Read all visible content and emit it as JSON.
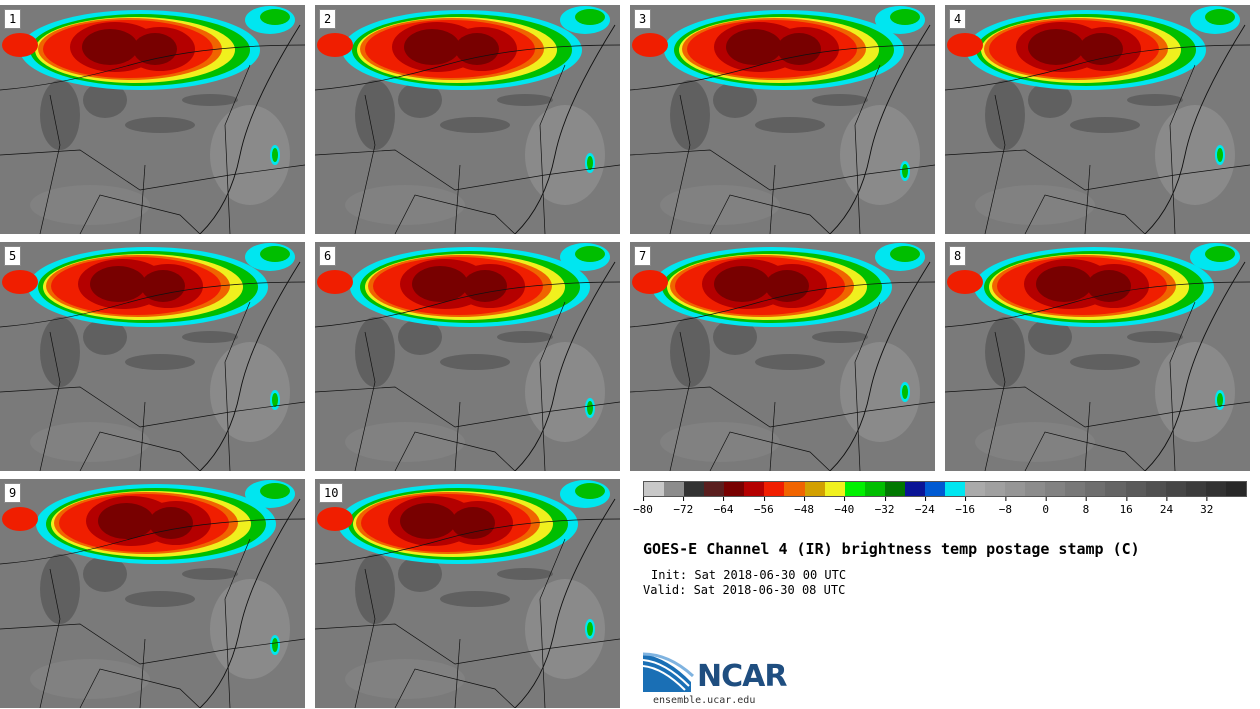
{
  "panels": [
    {
      "label": "1"
    },
    {
      "label": "2"
    },
    {
      "label": "3"
    },
    {
      "label": "4"
    },
    {
      "label": "5"
    },
    {
      "label": "6"
    },
    {
      "label": "7"
    },
    {
      "label": "8"
    },
    {
      "label": "9"
    },
    {
      "label": "10"
    }
  ],
  "colorbar": {
    "colors": [
      "#c8c8c8",
      "#8c8c8c",
      "#323232",
      "#5a1e1e",
      "#780000",
      "#b40000",
      "#f01e00",
      "#f06400",
      "#d2a000",
      "#f0f01e",
      "#00f000",
      "#00be00",
      "#007800",
      "#0a1496",
      "#005ad2",
      "#00e6f0",
      "#aaaaaa",
      "#a0a0a0",
      "#969696",
      "#8c8c8c",
      "#828282",
      "#787878",
      "#6e6e6e",
      "#646464",
      "#5a5a5a",
      "#505050",
      "#464646",
      "#3c3c3c",
      "#323232",
      "#282828"
    ],
    "ticks": [
      "−80",
      "−72",
      "−64",
      "−56",
      "−48",
      "−40",
      "−32",
      "−24",
      "−16",
      "−8",
      "0",
      "8",
      "16",
      "24",
      "32"
    ]
  },
  "title": "GOES-E Channel 4 (IR) brightness temp postage stamp (C)",
  "init": "Init: Sat 2018-06-30 00 UTC",
  "valid": "Valid: Sat 2018-06-30 08 UTC",
  "logo": {
    "word": "NCAR",
    "url": "ensemble.ucar.edu"
  }
}
